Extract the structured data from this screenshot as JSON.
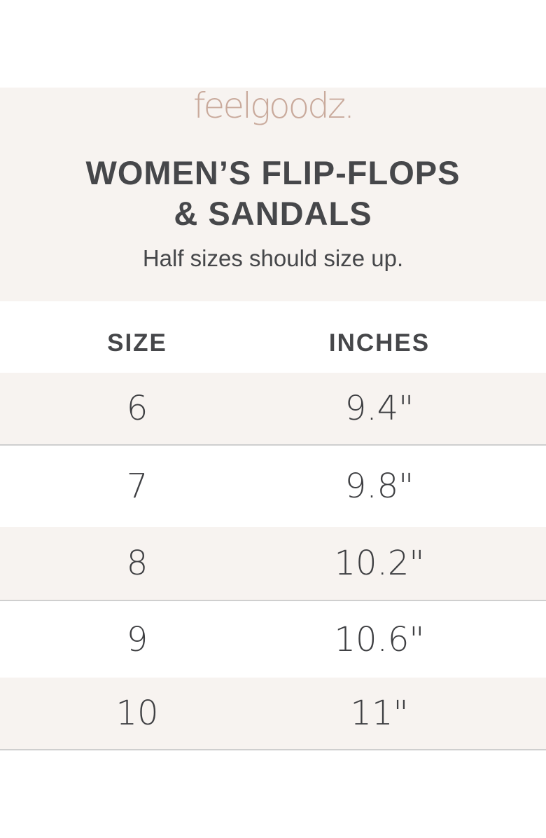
{
  "brand": {
    "logo": "feelgoodz.",
    "logo_color": "#c9aa9c"
  },
  "header": {
    "title_line1": "WOMEN’S FLIP-FLOPS",
    "title_line2": "& SANDALS",
    "subtitle": "Half sizes should size up."
  },
  "table": {
    "columns": [
      "SIZE",
      "INCHES"
    ],
    "rows": [
      {
        "size": "6",
        "inches": "9.4\""
      },
      {
        "size": "7",
        "inches": "9.8\""
      },
      {
        "size": "8",
        "inches": "10.2\""
      },
      {
        "size": "9",
        "inches": "10.6\""
      },
      {
        "size": "10",
        "inches": "11\""
      }
    ]
  },
  "colors": {
    "band": "#f7f3f0",
    "text": "#46474a"
  }
}
